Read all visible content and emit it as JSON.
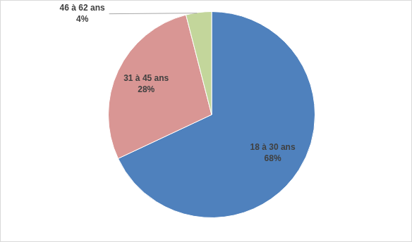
{
  "chart_data": {
    "type": "pie",
    "categories": [
      "18 à 30 ans",
      "31 à 45 ans",
      "46 à 62 ans"
    ],
    "values": [
      68,
      28,
      4
    ],
    "value_labels": [
      "68%",
      "28%",
      "4%"
    ],
    "colors": [
      "#4f81bd",
      "#d99694",
      "#c3d69b"
    ],
    "data_labels": true
  }
}
